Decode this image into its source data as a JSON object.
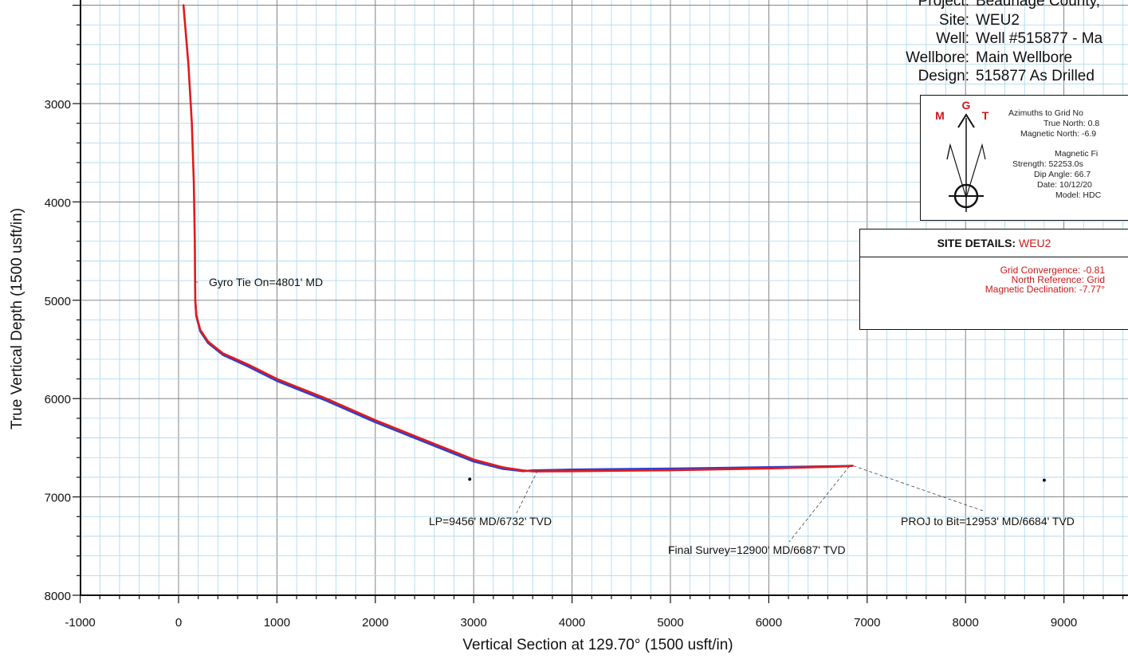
{
  "chart_data": {
    "type": "line",
    "xlabel": "Vertical Section at 129.70° (1500 usft/in)",
    "ylabel": "True Vertical Depth (1500 usft/in)",
    "xlim": [
      -1000,
      9500
    ],
    "ylim": [
      8000,
      2000
    ],
    "x_ticks": [
      -1000,
      0,
      1000,
      2000,
      3000,
      4000,
      5000,
      6000,
      7000,
      8000,
      9000
    ],
    "y_ticks": [
      3000,
      4000,
      5000,
      6000,
      7000,
      8000
    ],
    "grid": true,
    "series": [
      {
        "color": "#e01b1b",
        "x": [
          50,
          100,
          135,
          155,
          165,
          168,
          170,
          180,
          220,
          300,
          450,
          700,
          1000,
          1500,
          2000,
          2500,
          3000,
          3300,
          3500,
          3600,
          4000,
          5000,
          6000,
          6700,
          6800,
          6850
        ],
        "y": [
          2000,
          2600,
          3200,
          3800,
          4400,
          4800,
          5000,
          5150,
          5300,
          5420,
          5540,
          5650,
          5800,
          6000,
          6220,
          6420,
          6620,
          6700,
          6730,
          6740,
          6738,
          6728,
          6710,
          6692,
          6688,
          6684
        ]
      },
      {
        "color": "#2b3fd6",
        "x": [
          170,
          180,
          220,
          300,
          450,
          700,
          1000,
          1500,
          2000,
          2500,
          3000,
          3300,
          3500,
          3600,
          4000,
          5000,
          6000,
          6700,
          6800,
          6850
        ],
        "y": [
          5000,
          5160,
          5315,
          5435,
          5555,
          5670,
          5820,
          6020,
          6240,
          6440,
          6640,
          6715,
          6738,
          6730,
          6722,
          6712,
          6698,
          6688,
          6686,
          6684
        ]
      }
    ],
    "annotations": [
      {
        "text": "Gyro Tie On=4801' MD",
        "x": 170,
        "y": 4801
      },
      {
        "text": "LP=9456' MD/6732' TVD",
        "x": 3650,
        "y": 6732
      },
      {
        "text": "Final Survey=12900' MD/6687' TVD",
        "x": 6820,
        "y": 6687
      },
      {
        "text": "PROJ to Bit=12953' MD/6684' TVD",
        "x": 6860,
        "y": 6684
      }
    ],
    "dots": [
      {
        "x": 2960,
        "y": 6820
      },
      {
        "x": 8800,
        "y": 6830
      }
    ]
  },
  "header": {
    "rows": [
      {
        "label": "Project:",
        "value": "Beauriage County,"
      },
      {
        "label": "Site:",
        "value": "WEU2"
      },
      {
        "label": "Well:",
        "value": "Well #515877 - Ma"
      },
      {
        "label": "Wellbore:",
        "value": "Main Wellbore"
      },
      {
        "label": "Design:",
        "value": "515877 As Drilled"
      }
    ]
  },
  "north_box": {
    "letters": {
      "m": "M",
      "g": "G",
      "t": "T"
    },
    "lines": [
      "Azimuths to Grid No",
      "True North: 0.8",
      "Magnetic North: -6.9"
    ],
    "mag_lines": [
      "Magnetic Fi",
      "Strength: 52253.0s",
      "Dip Angle: 66.7",
      "Date: 10/12/20",
      "Model: HDC"
    ]
  },
  "site_details": {
    "title": "SITE DETAILS:",
    "site": "WEU2",
    "lines": [
      "Grid Convergence: -0.81",
      "North Reference: Grid",
      "Magnetic Declination: -7.77°"
    ]
  },
  "colors": {
    "grid_minor": "#a9d6ec",
    "grid_major": "#777777",
    "accent_red": "#d01818"
  }
}
